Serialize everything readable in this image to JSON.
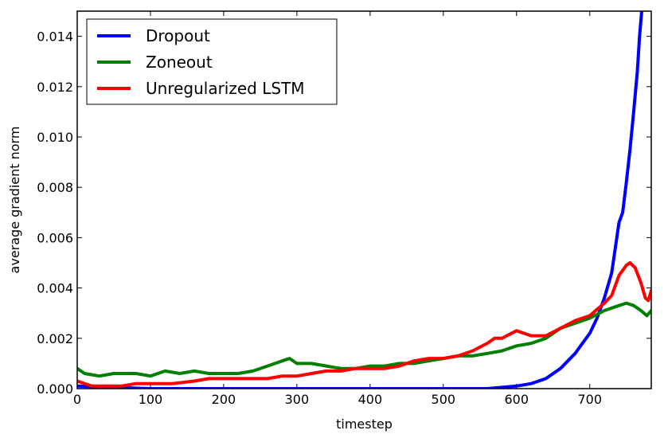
{
  "chart_data": {
    "type": "line",
    "xlabel": "timestep",
    "ylabel": "average gradient norm",
    "xlim": [
      0,
      784
    ],
    "ylim": [
      0,
      0.015
    ],
    "x_ticks": [
      0,
      100,
      200,
      300,
      400,
      500,
      600,
      700
    ],
    "y_ticks": [
      0.0,
      0.002,
      0.004,
      0.006,
      0.008,
      0.01,
      0.012,
      0.014
    ],
    "y_tick_labels": [
      "0.000",
      "0.002",
      "0.004",
      "0.006",
      "0.008",
      "0.010",
      "0.012",
      "0.014"
    ],
    "x_tick_labels": [
      "0",
      "100",
      "200",
      "300",
      "400",
      "500",
      "600",
      "700"
    ],
    "legend_position": "top-left",
    "grid": false,
    "series": [
      {
        "name": "Dropout",
        "color": "#0000ff",
        "points": [
          [
            0,
            0.0001
          ],
          [
            100,
            0.0
          ],
          [
            200,
            0.0
          ],
          [
            300,
            0.0
          ],
          [
            400,
            0.0
          ],
          [
            500,
            0.0
          ],
          [
            560,
            0.0
          ],
          [
            600,
            0.0001
          ],
          [
            620,
            0.0002
          ],
          [
            640,
            0.0004
          ],
          [
            660,
            0.0008
          ],
          [
            670,
            0.0011
          ],
          [
            680,
            0.0014
          ],
          [
            690,
            0.0018
          ],
          [
            700,
            0.0022
          ],
          [
            710,
            0.0028
          ],
          [
            720,
            0.0036
          ],
          [
            730,
            0.0046
          ],
          [
            740,
            0.0066
          ],
          [
            745,
            0.007
          ],
          [
            750,
            0.0082
          ],
          [
            755,
            0.0095
          ],
          [
            760,
            0.011
          ],
          [
            765,
            0.0126
          ],
          [
            768,
            0.014
          ],
          [
            771,
            0.015
          ]
        ]
      },
      {
        "name": "Zoneout",
        "color": "#008000",
        "points": [
          [
            0,
            0.0008
          ],
          [
            10,
            0.0006
          ],
          [
            30,
            0.0005
          ],
          [
            50,
            0.0006
          ],
          [
            80,
            0.0006
          ],
          [
            100,
            0.0005
          ],
          [
            120,
            0.0007
          ],
          [
            140,
            0.0006
          ],
          [
            160,
            0.0007
          ],
          [
            180,
            0.0006
          ],
          [
            200,
            0.0006
          ],
          [
            220,
            0.0006
          ],
          [
            240,
            0.0007
          ],
          [
            260,
            0.0009
          ],
          [
            280,
            0.0011
          ],
          [
            290,
            0.0012
          ],
          [
            300,
            0.001
          ],
          [
            320,
            0.001
          ],
          [
            340,
            0.0009
          ],
          [
            360,
            0.0008
          ],
          [
            380,
            0.0008
          ],
          [
            400,
            0.0009
          ],
          [
            420,
            0.0009
          ],
          [
            440,
            0.001
          ],
          [
            460,
            0.001
          ],
          [
            480,
            0.0011
          ],
          [
            500,
            0.0012
          ],
          [
            520,
            0.0013
          ],
          [
            540,
            0.0013
          ],
          [
            560,
            0.0014
          ],
          [
            580,
            0.0015
          ],
          [
            600,
            0.0017
          ],
          [
            620,
            0.0018
          ],
          [
            640,
            0.002
          ],
          [
            660,
            0.0024
          ],
          [
            680,
            0.0026
          ],
          [
            700,
            0.0028
          ],
          [
            720,
            0.0031
          ],
          [
            740,
            0.0033
          ],
          [
            750,
            0.0034
          ],
          [
            760,
            0.0033
          ],
          [
            770,
            0.0031
          ],
          [
            778,
            0.0029
          ],
          [
            784,
            0.0031
          ]
        ]
      },
      {
        "name": "Unregularized LSTM",
        "color": "#ff0000",
        "points": [
          [
            0,
            0.0003
          ],
          [
            20,
            0.0001
          ],
          [
            40,
            0.0001
          ],
          [
            60,
            0.0001
          ],
          [
            80,
            0.0002
          ],
          [
            100,
            0.0002
          ],
          [
            130,
            0.0002
          ],
          [
            160,
            0.0003
          ],
          [
            180,
            0.0004
          ],
          [
            200,
            0.0004
          ],
          [
            220,
            0.0004
          ],
          [
            240,
            0.0004
          ],
          [
            260,
            0.0004
          ],
          [
            280,
            0.0005
          ],
          [
            300,
            0.0005
          ],
          [
            320,
            0.0006
          ],
          [
            340,
            0.0007
          ],
          [
            360,
            0.0007
          ],
          [
            380,
            0.0008
          ],
          [
            400,
            0.0008
          ],
          [
            420,
            0.0008
          ],
          [
            440,
            0.0009
          ],
          [
            460,
            0.0011
          ],
          [
            480,
            0.0012
          ],
          [
            500,
            0.0012
          ],
          [
            520,
            0.0013
          ],
          [
            540,
            0.0015
          ],
          [
            560,
            0.0018
          ],
          [
            570,
            0.002
          ],
          [
            580,
            0.002
          ],
          [
            600,
            0.0023
          ],
          [
            620,
            0.0021
          ],
          [
            640,
            0.0021
          ],
          [
            660,
            0.0024
          ],
          [
            680,
            0.0027
          ],
          [
            700,
            0.0029
          ],
          [
            720,
            0.0034
          ],
          [
            730,
            0.0037
          ],
          [
            740,
            0.0045
          ],
          [
            750,
            0.0049
          ],
          [
            755,
            0.005
          ],
          [
            762,
            0.0048
          ],
          [
            770,
            0.0042
          ],
          [
            776,
            0.0036
          ],
          [
            780,
            0.0035
          ],
          [
            784,
            0.0039
          ]
        ]
      }
    ]
  }
}
